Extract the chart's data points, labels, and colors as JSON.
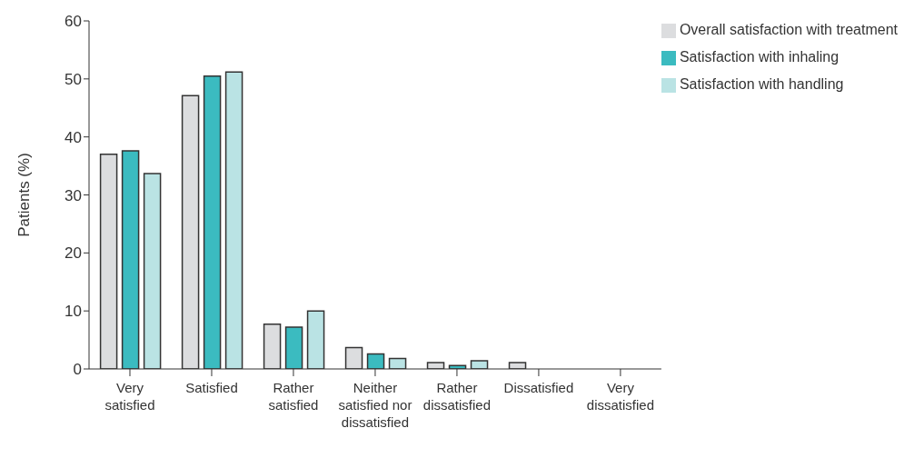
{
  "chart_data": {
    "type": "bar",
    "ylabel": "Patients (%)",
    "categories": [
      "Very satisfied",
      "Satisfied",
      "Rather satisfied",
      "Neither satisfied nor dissatisfied",
      "Rather dissatisfied",
      "Dissatisfied",
      "Very dissatisfied"
    ],
    "series": [
      {
        "name": "Overall satisfaction with treatment",
        "color": "#dcdddf",
        "values": [
          37.0,
          47.1,
          7.7,
          3.7,
          1.1,
          1.1,
          0
        ]
      },
      {
        "name": "Satisfaction with inhaling",
        "color": "#3bbbc0",
        "values": [
          37.6,
          50.5,
          7.2,
          2.6,
          0.6,
          0,
          0
        ]
      },
      {
        "name": "Satisfaction with handling",
        "color": "#bae3e4",
        "values": [
          33.7,
          51.2,
          10.0,
          1.8,
          1.4,
          0,
          0
        ]
      }
    ],
    "ylim": [
      0,
      60
    ],
    "yticks": [
      0,
      10,
      20,
      30,
      40,
      50,
      60
    ],
    "grid": false,
    "legend": "top right"
  }
}
